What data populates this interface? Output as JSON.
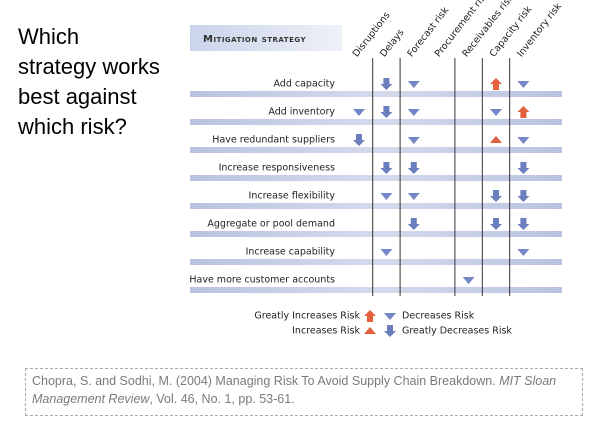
{
  "title_lines": [
    "Which",
    "strategy works",
    "best against",
    "which risk?"
  ],
  "matrix": {
    "header": "Mitigation strategy",
    "columns": [
      "Disruptions",
      "Delays",
      "Forecast risk",
      "Procurement risk",
      "Receivables risk",
      "Capacity risk",
      "Inventory risk"
    ],
    "rows": [
      {
        "label": "Add capacity",
        "cells": [
          null,
          "GD",
          "D",
          null,
          null,
          "GI",
          "D"
        ]
      },
      {
        "label": "Add inventory",
        "cells": [
          "D",
          "GD",
          "D",
          null,
          null,
          "D",
          "GI"
        ]
      },
      {
        "label": "Have redundant suppliers",
        "cells": [
          "GD",
          null,
          "D",
          null,
          null,
          "I",
          "D"
        ]
      },
      {
        "label": "Increase responsiveness",
        "cells": [
          null,
          "GD",
          "GD",
          null,
          null,
          null,
          "GD"
        ]
      },
      {
        "label": "Increase flexibility",
        "cells": [
          null,
          "D",
          "D",
          null,
          null,
          "GD",
          "GD"
        ]
      },
      {
        "label": "Aggregate or pool demand",
        "cells": [
          null,
          null,
          "GD",
          null,
          null,
          "GD",
          "GD"
        ]
      },
      {
        "label": "Increase capability",
        "cells": [
          null,
          "D",
          null,
          null,
          null,
          null,
          "D"
        ]
      },
      {
        "label": "Have more customer accounts",
        "cells": [
          null,
          null,
          null,
          null,
          "D",
          null,
          null
        ]
      }
    ],
    "legend": [
      {
        "symbol": "GI",
        "label": "Greatly Increases Risk"
      },
      {
        "symbol": "D",
        "label": "Decreases Risk"
      },
      {
        "symbol": "I",
        "label": "Increases Risk"
      },
      {
        "symbol": "GD",
        "label": "Greatly Decreases Risk"
      }
    ]
  },
  "citation": {
    "text": "Chopra, S. and Sodhi, M. (2004) Managing Risk To Avoid Supply Chain Breakdown. ",
    "journal": "MIT Sloan Management Review",
    "details": ", Vol. 46, No. 1, pp. 53-61."
  }
}
